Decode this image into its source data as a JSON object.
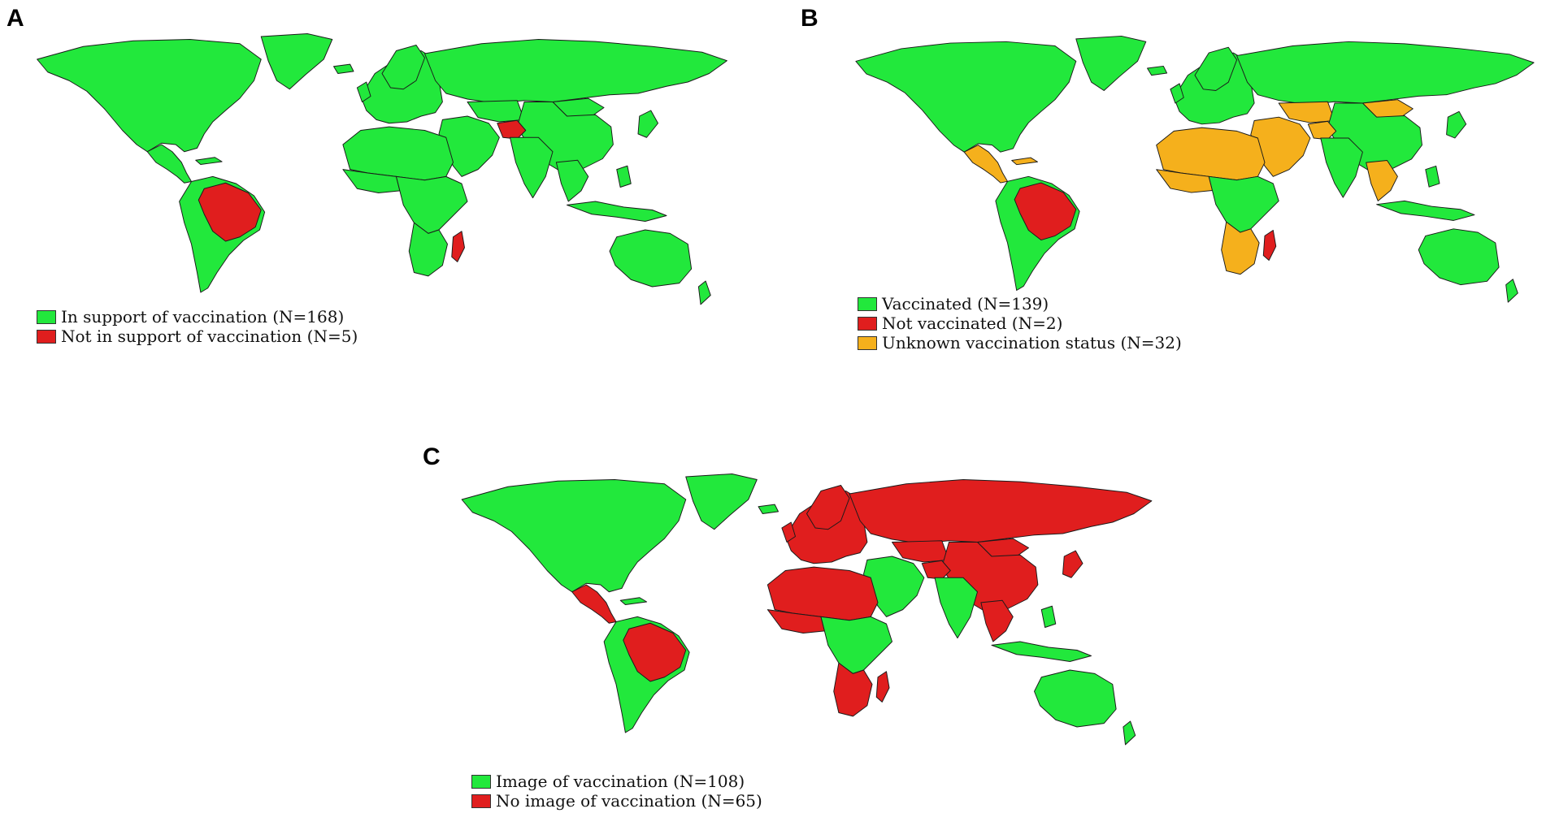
{
  "colors": {
    "green": "#22e83c",
    "red": "#e01e1e",
    "orange": "#f5b01c"
  },
  "panels": {
    "A": {
      "letter": "A",
      "legend": [
        {
          "label": "In support of vaccination (N=168)",
          "color": "#22e83c"
        },
        {
          "label": "Not in support of vaccination (N=5)",
          "color": "#e01e1e"
        }
      ]
    },
    "B": {
      "letter": "B",
      "legend": [
        {
          "label": "Vaccinated (N=139)",
          "color": "#22e83c"
        },
        {
          "label": "Not vaccinated (N=2)",
          "color": "#e01e1e"
        },
        {
          "label": "Unknown vaccination status (N=32)",
          "color": "#f5b01c"
        }
      ]
    },
    "C": {
      "letter": "C",
      "legend": [
        {
          "label": "Image of vaccination (N=108)",
          "color": "#22e83c"
        },
        {
          "label": "No image of vaccination (N=65)",
          "color": "#e01e1e"
        }
      ]
    }
  }
}
